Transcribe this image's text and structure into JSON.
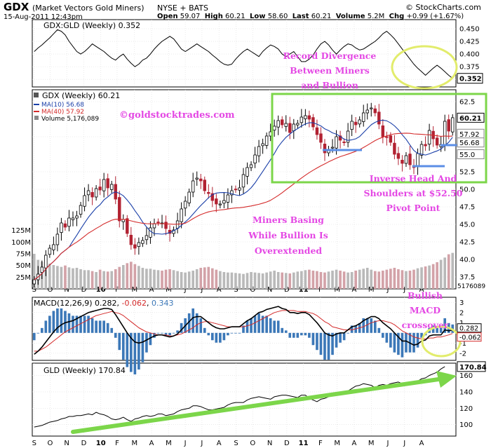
{
  "header": {
    "symbol": "GDX",
    "name": "(Market Vectors Gold Miners)",
    "exchange": "NYSE + BATS",
    "source": "© StockCharts.com",
    "datetime": "15-Aug-2011 12:43pm",
    "open_label": "Open",
    "open": "59.07",
    "high_label": "High",
    "high": "60.21",
    "low_label": "Low",
    "low": "58.60",
    "last_label": "Last",
    "last": "60.21",
    "volume_label": "Volume",
    "volume": "5.2M",
    "chg_label": "Chg",
    "chg": "+0.99 (+1.67%)"
  },
  "colors": {
    "price_up": "#000000",
    "price_down": "#b22232",
    "ma10": "#1a3fa8",
    "ma40": "#d42a2a",
    "volume_up": "#b9b9b9",
    "volume_down": "#d3a2a8",
    "macd_hist": "#3c78b8",
    "annotation": "#e448e4",
    "highlight_box": "#7cd64a",
    "ellipse": "#e2ec6c",
    "support_line": "#5b8ee6"
  },
  "chart_data": [
    {
      "type": "line",
      "title": "GDX:GLD (Weekly) 0.352",
      "last_value_label": "0.352",
      "ylim": [
        0.335,
        0.468
      ],
      "ticks": [
        "0.450",
        "0.425",
        "0.400",
        "0.375",
        "0.350"
      ],
      "tick_values": [
        0.45,
        0.425,
        0.4,
        0.375,
        0.35
      ],
      "values": [
        0.405,
        0.412,
        0.418,
        0.425,
        0.432,
        0.44,
        0.448,
        0.445,
        0.438,
        0.425,
        0.415,
        0.405,
        0.4,
        0.405,
        0.412,
        0.42,
        0.415,
        0.41,
        0.405,
        0.398,
        0.392,
        0.388,
        0.395,
        0.4,
        0.39,
        0.382,
        0.375,
        0.38,
        0.388,
        0.392,
        0.4,
        0.41,
        0.418,
        0.425,
        0.43,
        0.435,
        0.43,
        0.42,
        0.41,
        0.405,
        0.41,
        0.415,
        0.42,
        0.415,
        0.41,
        0.405,
        0.398,
        0.392,
        0.385,
        0.38,
        0.378,
        0.38,
        0.39,
        0.398,
        0.405,
        0.41,
        0.405,
        0.4,
        0.395,
        0.405,
        0.412,
        0.418,
        0.415,
        0.41,
        0.4,
        0.395,
        0.4,
        0.405,
        0.395,
        0.385,
        0.385,
        0.39,
        0.398,
        0.41,
        0.42,
        0.425,
        0.418,
        0.408,
        0.4,
        0.408,
        0.415,
        0.42,
        0.418,
        0.412,
        0.408,
        0.41,
        0.415,
        0.42,
        0.425,
        0.432,
        0.44,
        0.445,
        0.438,
        0.43,
        0.42,
        0.41,
        0.4,
        0.39,
        0.38,
        0.372,
        0.365,
        0.358,
        0.365,
        0.372,
        0.378,
        0.372,
        0.365,
        0.358,
        0.352
      ],
      "annotation": [
        "Record Divergence",
        "Between Miners",
        "and Bullion"
      ]
    },
    {
      "type": "candlestick",
      "title": "GDX (Weekly) 60.21",
      "legend": [
        "MA(10) 56.68",
        "MA(40) 57.92",
        "Volume 5,176,089"
      ],
      "watermark": "©goldstocktrades.com",
      "ylim": [
        35.8,
        64.2
      ],
      "ticks": [
        "62.5",
        "57.5",
        "52.5",
        "50.0",
        "47.5",
        "45.0",
        "42.5",
        "40.0",
        "37.5"
      ],
      "tick_values": [
        62.5,
        57.5,
        52.5,
        50.0,
        47.5,
        45.0,
        42.5,
        40.0,
        37.5
      ],
      "price_labels": [
        "60.21",
        "57.92",
        "56.68",
        "55.0"
      ],
      "price_label_values": [
        60.21,
        57.92,
        56.68,
        55.0
      ],
      "closes": [
        37.1,
        37.9,
        38.9,
        40.6,
        41.6,
        42.1,
        43.6,
        45.2,
        44.6,
        45.9,
        45.9,
        46.2,
        47.7,
        49.1,
        49.8,
        48.9,
        50.1,
        49.9,
        51.4,
        50.2,
        50.7,
        48.6,
        45.5,
        45.7,
        43.7,
        42.1,
        41.6,
        42.4,
        42.7,
        43.4,
        44.5,
        45.1,
        45.3,
        45.2,
        44.4,
        43.7,
        44.2,
        45.5,
        47.2,
        48.3,
        49.6,
        51.2,
        51.6,
        51.2,
        49.8,
        49.4,
        48.4,
        47.9,
        47.9,
        48.4,
        49.2,
        49.8,
        50.0,
        50.2,
        52.1,
        53.1,
        53.5,
        54.9,
        56.1,
        56.5,
        57.6,
        58.2,
        59.0,
        59.8,
        59.2,
        59.4,
        58.1,
        59.3,
        59.4,
        60.3,
        60.5,
        60.0,
        58.9,
        57.8,
        56.7,
        55.2,
        55.7,
        56.0,
        57.5,
        57.0,
        56.7,
        58.3,
        59.7,
        59.2,
        59.9,
        60.9,
        61.3,
        61.6,
        60.9,
        59.3,
        57.5,
        57.4,
        56.7,
        55.0,
        54.4,
        53.7,
        54.8,
        53.5,
        53.1,
        55.1,
        56.4,
        56.2,
        58.4,
        57.2,
        56.3,
        56.4,
        59.7,
        58.3,
        60.21
      ],
      "annotations": [
        [
          "Miners Basing",
          "While Bullion Is",
          "Overextended"
        ],
        [
          "Inverse Head And",
          "Shoulders at $52.50",
          "Pivot Point"
        ]
      ]
    },
    {
      "type": "bar",
      "title": "Volume",
      "ticks": [
        "125M",
        "100M",
        "75M",
        "50M",
        "25M"
      ],
      "tick_values": [
        125,
        100,
        75,
        50,
        25
      ],
      "ylim": [
        0,
        135
      ],
      "unit": "millions",
      "last_value_label": "5176089",
      "values": [
        75,
        62,
        58,
        64,
        54,
        51,
        49,
        47,
        50,
        46,
        44,
        45,
        42,
        40,
        40,
        38,
        36,
        41,
        38,
        37,
        38,
        42,
        47,
        51,
        55,
        58,
        53,
        49,
        45,
        43,
        43,
        41,
        40,
        39,
        41,
        42,
        40,
        38,
        36,
        35,
        37,
        39,
        42,
        45,
        46,
        47,
        44,
        41,
        38,
        36,
        35,
        35,
        34,
        33,
        32,
        34,
        36,
        35,
        34,
        33,
        35,
        37,
        39,
        36,
        35,
        34,
        33,
        35,
        37,
        38,
        40,
        41,
        39,
        38,
        36,
        35,
        37,
        39,
        41,
        39,
        37,
        35,
        36,
        39,
        41,
        43,
        45,
        41,
        38,
        37,
        39,
        41,
        43,
        45,
        42,
        40,
        38,
        39,
        41,
        44,
        46,
        48,
        50,
        53,
        57,
        62,
        67,
        74,
        77
      ]
    },
    {
      "type": "line",
      "title": "MACD(12,26,9) 0.282, -0.062, 0.343",
      "title_parts": [
        "MACD(12,26,9) 0.282, ",
        "-0.062",
        ", ",
        "0.343"
      ],
      "ylim": [
        -2.7,
        3.5
      ],
      "ticks": [
        "3",
        "2",
        "1",
        "0",
        "-1",
        "-2"
      ],
      "tick_values": [
        3,
        2,
        1,
        0,
        -1,
        -2
      ],
      "value_labels": [
        "0.282",
        "-0.062"
      ],
      "value_label_positions": [
        0.282,
        -0.062
      ],
      "series": [
        {
          "name": "MACD",
          "values": [
            -2.1,
            -1.8,
            -1.4,
            -0.9,
            -0.4,
            0.1,
            0.5,
            0.8,
            1.0,
            1.1,
            1.2,
            1.4,
            1.6,
            1.8,
            2.0,
            2.1,
            2.2,
            2.3,
            2.4,
            2.4,
            2.3,
            1.8,
            1.2,
            0.6,
            0.0,
            -0.5,
            -0.9,
            -1.0,
            -0.9,
            -0.7,
            -0.5,
            -0.3,
            -0.2,
            -0.2,
            -0.3,
            -0.4,
            -0.3,
            -0.1,
            0.3,
            0.7,
            1.1,
            1.5,
            1.6,
            1.6,
            1.3,
            1.0,
            0.7,
            0.5,
            0.4,
            0.4,
            0.5,
            0.6,
            0.6,
            0.6,
            0.9,
            1.2,
            1.4,
            1.7,
            2.0,
            2.1,
            2.3,
            2.4,
            2.5,
            2.6,
            2.4,
            2.3,
            2.0,
            2.0,
            1.9,
            2.0,
            2.0,
            1.8,
            1.4,
            1.0,
            0.5,
            0.0,
            -0.2,
            -0.3,
            -0.1,
            0.0,
            0.0,
            0.3,
            0.6,
            0.7,
            0.9,
            1.2,
            1.4,
            1.6,
            1.6,
            1.4,
            1.0,
            0.7,
            0.4,
            0.0,
            -0.4,
            -0.8,
            -0.8,
            -1.0,
            -1.2,
            -1.1,
            -0.8,
            -0.7,
            -0.3,
            -0.2,
            -0.2,
            -0.2,
            0.3,
            0.2,
            0.282
          ]
        },
        {
          "name": "Signal",
          "values": [
            -1.8,
            -1.8,
            -1.6,
            -1.4,
            -1.1,
            -0.8,
            -0.5,
            -0.2,
            0.1,
            0.3,
            0.5,
            0.7,
            0.9,
            1.1,
            1.3,
            1.5,
            1.7,
            1.8,
            1.9,
            2.0,
            2.1,
            2.0,
            1.9,
            1.7,
            1.4,
            1.1,
            0.8,
            0.5,
            0.3,
            0.1,
            0.0,
            -0.1,
            -0.2,
            -0.2,
            -0.2,
            -0.3,
            -0.3,
            -0.2,
            -0.1,
            0.1,
            0.3,
            0.5,
            0.8,
            1.0,
            1.1,
            1.1,
            1.0,
            0.9,
            0.8,
            0.7,
            0.6,
            0.6,
            0.6,
            0.6,
            0.6,
            0.7,
            0.8,
            1.0,
            1.2,
            1.4,
            1.6,
            1.8,
            2.0,
            2.1,
            2.2,
            2.2,
            2.2,
            2.2,
            2.1,
            2.1,
            2.1,
            2.0,
            1.9,
            1.7,
            1.4,
            1.1,
            0.9,
            0.6,
            0.5,
            0.4,
            0.3,
            0.3,
            0.3,
            0.4,
            0.5,
            0.6,
            0.8,
            1.0,
            1.1,
            1.2,
            1.2,
            1.1,
            1.0,
            0.8,
            0.5,
            0.2,
            0.0,
            -0.2,
            -0.4,
            -0.5,
            -0.6,
            -0.6,
            -0.5,
            -0.5,
            -0.4,
            -0.4,
            -0.3,
            -0.2,
            -0.062
          ]
        }
      ],
      "annotation": [
        "Bullish",
        "MACD",
        "crossover"
      ]
    },
    {
      "type": "line",
      "title": "GLD (Weekly) 170.84",
      "last_value_label": "170.84",
      "ylim": [
        86,
        175
      ],
      "ticks": [
        "160",
        "140",
        "120",
        "100"
      ],
      "tick_values": [
        160,
        140,
        120,
        100
      ],
      "values": [
        97,
        98,
        99,
        101,
        103,
        104,
        105,
        107,
        108,
        110,
        110,
        111,
        111,
        112,
        113,
        112,
        115,
        113,
        112,
        110,
        107,
        106,
        107,
        109,
        106,
        104,
        107,
        108,
        110,
        111,
        110,
        111,
        113,
        113,
        111,
        112,
        113,
        116,
        118,
        119,
        120,
        123,
        123,
        122,
        120,
        118,
        118,
        119,
        120,
        121,
        124,
        126,
        127,
        127,
        127,
        130,
        132,
        133,
        134,
        133,
        132,
        131,
        134,
        135,
        136,
        136,
        135,
        134,
        133,
        136,
        136,
        132,
        130,
        128,
        131,
        132,
        134,
        136,
        138,
        138,
        139,
        141,
        144,
        147,
        148,
        150,
        149,
        148,
        145,
        148,
        149,
        148,
        150,
        151,
        152,
        150,
        148,
        150,
        151,
        153,
        156,
        157,
        160,
        162,
        164,
        168,
        170.84
      ],
      "trend_arrow": "rising"
    }
  ],
  "x_axis": {
    "labels": [
      "S",
      "O",
      "N",
      "D",
      "10",
      "F",
      "M",
      "A",
      "M",
      "J",
      "J",
      "A",
      "S",
      "O",
      "N",
      "D",
      "11",
      "F",
      "M",
      "A",
      "M",
      "J",
      "J",
      "A"
    ],
    "label_weeks": [
      0.5,
      4.6,
      8.9,
      13.3,
      17.7,
      21.9,
      26.4,
      30.8,
      35.2,
      39.5,
      43.8,
      48.2,
      52.6,
      56.9,
      61.3,
      65.7,
      70.0,
      74.4,
      78.7,
      83.1,
      87.5,
      91.8,
      96.1,
      100.5
    ],
    "bold_labels": [
      "10",
      "11"
    ]
  }
}
